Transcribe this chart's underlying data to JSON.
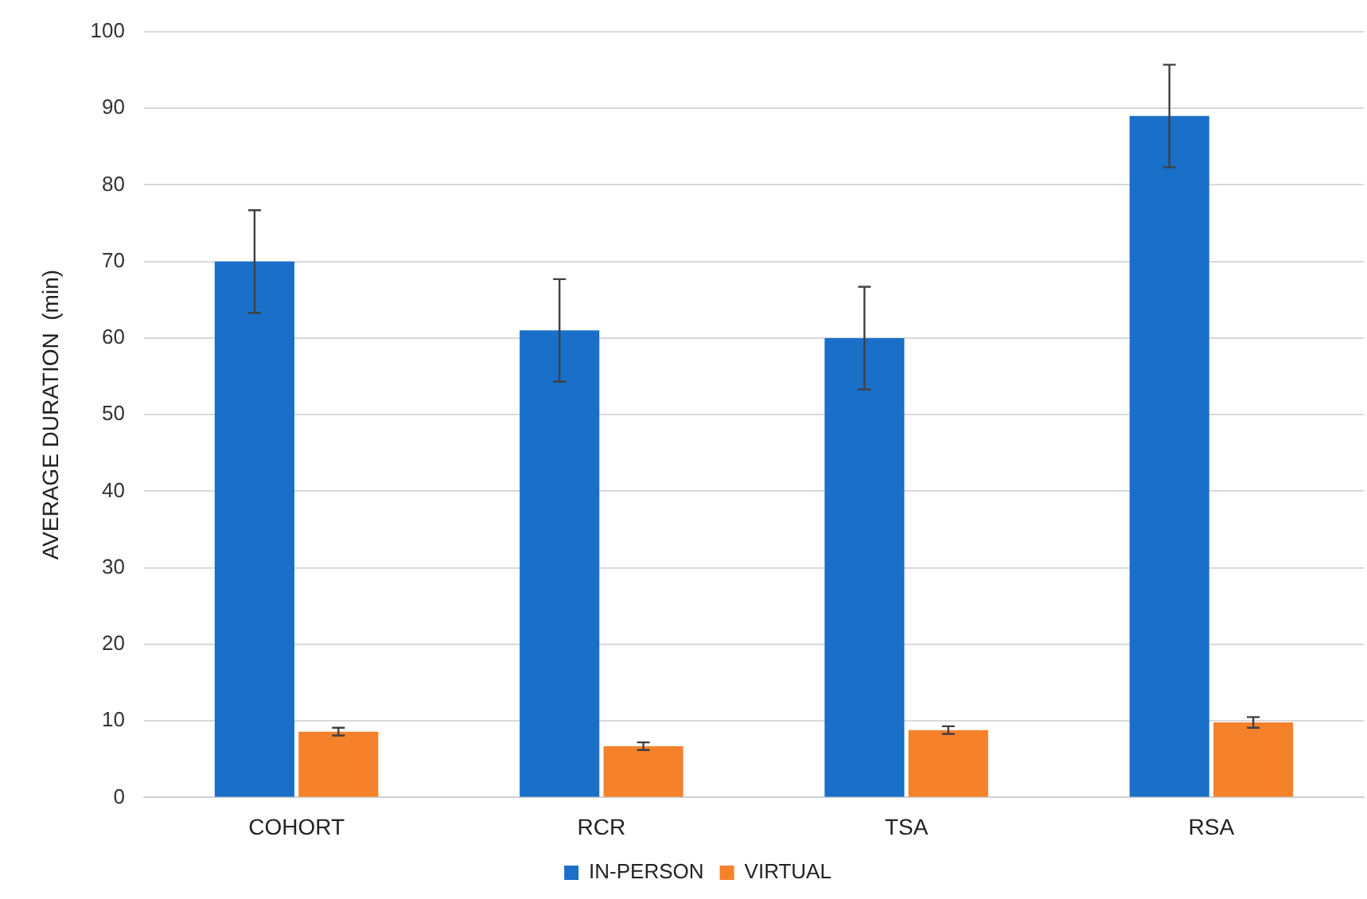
{
  "chart_data": {
    "type": "bar",
    "ylabel": "AVERAGE DURATION  (min)",
    "categories": [
      "COHORT",
      "RCR",
      "TSA",
      "RSA"
    ],
    "series": [
      {
        "name": "IN-PERSON",
        "color": "#1a6fc8",
        "values": [
          70,
          61,
          60,
          89
        ],
        "errors": [
          6.7,
          6.7,
          6.7,
          6.7
        ]
      },
      {
        "name": "VIRTUAL",
        "color": "#f5812a",
        "values": [
          8.6,
          6.7,
          8.8,
          9.8
        ],
        "errors": [
          0.5,
          0.5,
          0.5,
          0.7
        ]
      }
    ],
    "ylim": [
      0,
      100
    ],
    "yticks": [
      0,
      10,
      20,
      30,
      40,
      50,
      60,
      70,
      80,
      90,
      100
    ],
    "grid": "y",
    "legend": "bottom"
  }
}
